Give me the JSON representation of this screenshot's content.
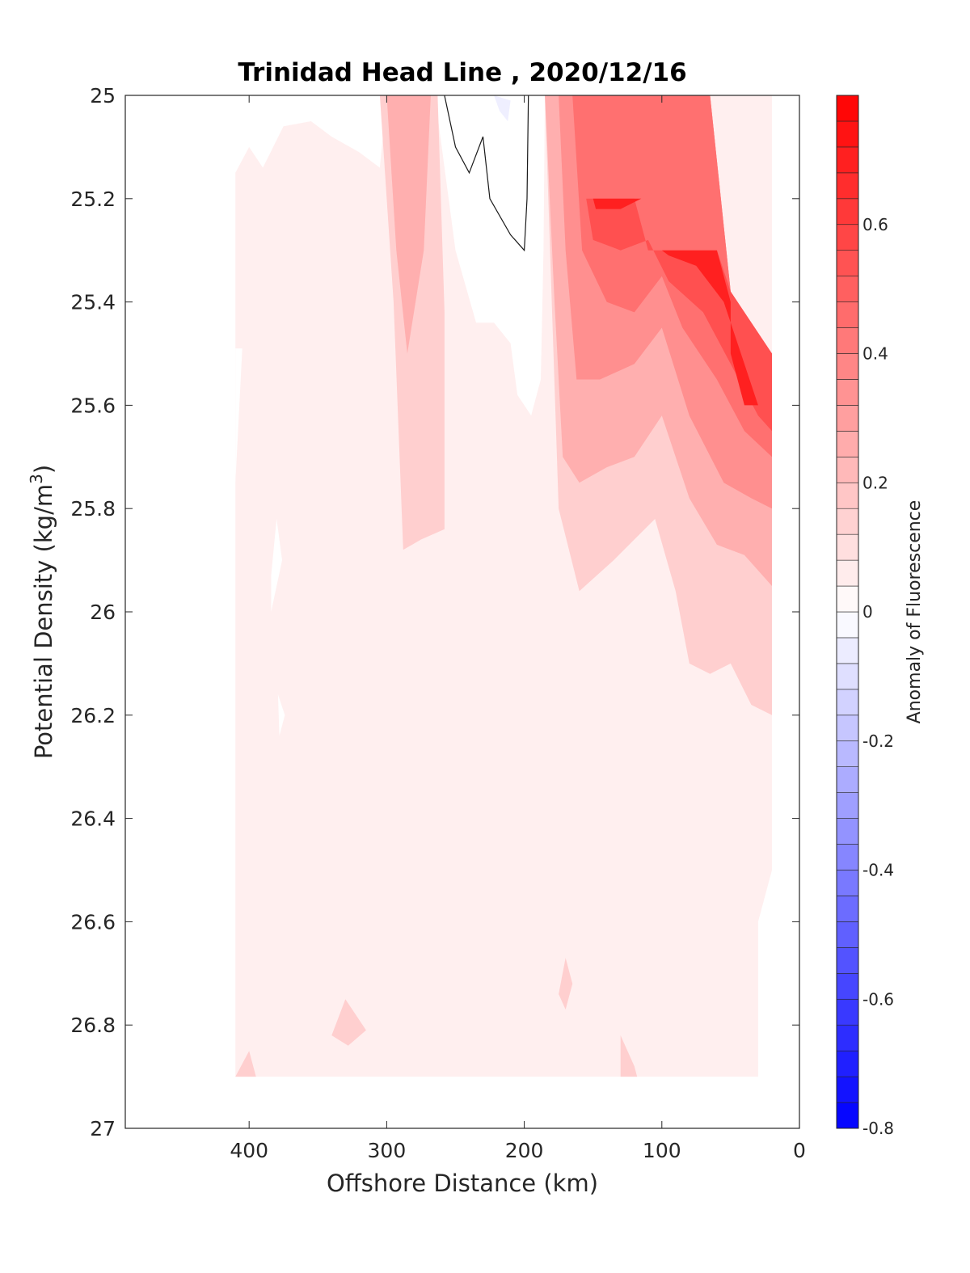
{
  "chart_data": {
    "type": "heatmap",
    "subtype": "filled-contour",
    "title": "Trinidad Head Line , 2020/12/16",
    "xlabel": "Offshore Distance (km)",
    "ylabel_main": "Potential Density (kg/m",
    "ylabel_sup": "3",
    "ylabel_end": ")",
    "xlim": [
      490,
      0
    ],
    "x_reversed": true,
    "ylim": [
      25,
      27
    ],
    "y_reversed": true,
    "x_ticks": [
      400,
      300,
      200,
      100,
      0
    ],
    "x_tick_labels": [
      "400",
      "300",
      "200",
      "100",
      "0"
    ],
    "y_ticks": [
      25,
      25.2,
      25.4,
      25.6,
      25.8,
      26,
      26.2,
      26.4,
      26.6,
      26.8,
      27
    ],
    "y_tick_labels": [
      "25",
      "25.2",
      "25.4",
      "25.6",
      "25.8",
      "26",
      "26.2",
      "26.4",
      "26.6",
      "26.8",
      "27"
    ],
    "colorbar": {
      "label": "Anomaly of Fluorescence",
      "range": [
        -0.8,
        0.8
      ],
      "levels": 40,
      "ticks": [
        0.6,
        0.4,
        0.2,
        0,
        -0.2,
        -0.4,
        -0.6,
        -0.8
      ],
      "tick_labels": [
        "0.6",
        "0.4",
        "0.2",
        "0",
        "-0.2",
        "-0.4",
        "-0.6",
        "-0.8"
      ],
      "colormap": "blue-white-red",
      "neg_color": "#0000ff",
      "zero_color": "#ffffff",
      "pos_color": "#ff0000"
    },
    "data_extent": {
      "x": [
        20,
        410
      ],
      "y": [
        25,
        26.9
      ]
    },
    "contour_regions": [
      {
        "value": 0.05,
        "points": [
          [
            410,
            25.15
          ],
          [
            400,
            25.1
          ],
          [
            390,
            25.14
          ],
          [
            375,
            25.06
          ],
          [
            355,
            25.05
          ],
          [
            340,
            25.08
          ],
          [
            320,
            25.11
          ],
          [
            305,
            25.14
          ],
          [
            300,
            25.0
          ],
          [
            265,
            25.0
          ],
          [
            250,
            25.3
          ],
          [
            235,
            25.44
          ],
          [
            222,
            25.44
          ],
          [
            210,
            25.48
          ],
          [
            205,
            25.58
          ],
          [
            200,
            25.6
          ],
          [
            195,
            25.62
          ],
          [
            188,
            25.55
          ],
          [
            186,
            25.3
          ],
          [
            185,
            25.0
          ],
          [
            20,
            25.0
          ],
          [
            20,
            26.5
          ],
          [
            30,
            26.6
          ],
          [
            30,
            26.9
          ],
          [
            410,
            26.9
          ]
        ]
      },
      {
        "value": 0.0,
        "points": [
          [
            410,
            25.75
          ],
          [
            405,
            25.49
          ],
          [
            410,
            25.49
          ]
        ]
      },
      {
        "value": 0.0,
        "points": [
          [
            384,
            25.93
          ],
          [
            380,
            25.82
          ],
          [
            376,
            25.9
          ],
          [
            384,
            26.0
          ]
        ]
      },
      {
        "value": 0.0,
        "points": [
          [
            379,
            26.16
          ],
          [
            374,
            26.2
          ],
          [
            378,
            26.24
          ]
        ]
      },
      {
        "value": 0.15,
        "points": [
          [
            305,
            25.0
          ],
          [
            295,
            25.4
          ],
          [
            288,
            25.88
          ],
          [
            275,
            25.86
          ],
          [
            258,
            25.84
          ],
          [
            258,
            25.42
          ],
          [
            263,
            25.0
          ]
        ]
      },
      {
        "value": 0.15,
        "points": [
          [
            185,
            25.0
          ],
          [
            180,
            25.4
          ],
          [
            175,
            25.8
          ],
          [
            160,
            25.96
          ],
          [
            135,
            25.9
          ],
          [
            105,
            25.82
          ],
          [
            90,
            25.96
          ],
          [
            80,
            26.1
          ],
          [
            65,
            26.12
          ],
          [
            50,
            26.1
          ],
          [
            35,
            26.18
          ],
          [
            20,
            26.2
          ],
          [
            20,
            25.5
          ],
          [
            50,
            25.38
          ],
          [
            65,
            25.0
          ]
        ]
      },
      {
        "value": 0.15,
        "points": [
          [
            340,
            26.82
          ],
          [
            330,
            26.75
          ],
          [
            315,
            26.81
          ],
          [
            328,
            26.84
          ]
        ]
      },
      {
        "value": 0.15,
        "points": [
          [
            410,
            26.9
          ],
          [
            400,
            26.85
          ],
          [
            395,
            26.9
          ]
        ]
      },
      {
        "value": 0.15,
        "points": [
          [
            175,
            26.74
          ],
          [
            170,
            26.67
          ],
          [
            165,
            26.72
          ],
          [
            170,
            26.77
          ]
        ]
      },
      {
        "value": 0.15,
        "points": [
          [
            130,
            26.9
          ],
          [
            130,
            26.82
          ],
          [
            120,
            26.88
          ],
          [
            118,
            26.9
          ]
        ]
      },
      {
        "value": 0.25,
        "points": [
          [
            300,
            25.0
          ],
          [
            293,
            25.3
          ],
          [
            285,
            25.5
          ],
          [
            273,
            25.3
          ],
          [
            268,
            25.0
          ]
        ]
      },
      {
        "value": 0.25,
        "points": [
          [
            185,
            25.0
          ],
          [
            178,
            25.4
          ],
          [
            172,
            25.7
          ],
          [
            160,
            25.75
          ],
          [
            140,
            25.72
          ],
          [
            120,
            25.7
          ],
          [
            100,
            25.62
          ],
          [
            80,
            25.78
          ],
          [
            60,
            25.87
          ],
          [
            40,
            25.89
          ],
          [
            20,
            25.95
          ],
          [
            20,
            25.5
          ],
          [
            50,
            25.38
          ],
          [
            65,
            25.0
          ]
        ]
      },
      {
        "value": 0.35,
        "points": [
          [
            175,
            25.0
          ],
          [
            170,
            25.3
          ],
          [
            162,
            25.55
          ],
          [
            145,
            25.55
          ],
          [
            120,
            25.52
          ],
          [
            100,
            25.45
          ],
          [
            80,
            25.62
          ],
          [
            55,
            25.75
          ],
          [
            35,
            25.78
          ],
          [
            20,
            25.8
          ],
          [
            20,
            25.5
          ],
          [
            50,
            25.38
          ],
          [
            65,
            25.0
          ]
        ]
      },
      {
        "value": 0.45,
        "points": [
          [
            165,
            25.0
          ],
          [
            158,
            25.3
          ],
          [
            140,
            25.4
          ],
          [
            120,
            25.42
          ],
          [
            100,
            25.35
          ],
          [
            85,
            25.45
          ],
          [
            60,
            25.55
          ],
          [
            40,
            25.65
          ],
          [
            20,
            25.7
          ],
          [
            20,
            25.5
          ],
          [
            50,
            25.38
          ],
          [
            65,
            25.0
          ]
        ]
      },
      {
        "value": 0.55,
        "points": [
          [
            155,
            25.2
          ],
          [
            150,
            25.28
          ],
          [
            130,
            25.3
          ],
          [
            110,
            25.28
          ],
          [
            95,
            25.36
          ],
          [
            70,
            25.42
          ],
          [
            50,
            25.52
          ],
          [
            30,
            25.62
          ],
          [
            20,
            25.65
          ],
          [
            20,
            25.5
          ],
          [
            50,
            25.38
          ],
          [
            60,
            25.3
          ],
          [
            110,
            25.3
          ],
          [
            120,
            25.2
          ]
        ]
      },
      {
        "value": 0.7,
        "points": [
          [
            150,
            25.2
          ],
          [
            148,
            25.22
          ],
          [
            130,
            25.22
          ],
          [
            115,
            25.2
          ]
        ]
      },
      {
        "value": 0.7,
        "points": [
          [
            100,
            25.3
          ],
          [
            95,
            25.31
          ],
          [
            75,
            25.33
          ],
          [
            55,
            25.4
          ],
          [
            40,
            25.52
          ],
          [
            30,
            25.6
          ],
          [
            40,
            25.6
          ],
          [
            50,
            25.5
          ],
          [
            50,
            25.4
          ],
          [
            60,
            25.3
          ]
        ]
      },
      {
        "value": -0.05,
        "points": [
          [
            222,
            25.0
          ],
          [
            218,
            25.03
          ],
          [
            212,
            25.05
          ],
          [
            210,
            25.01
          ]
        ]
      }
    ],
    "zero_contour_line": [
      [
        258,
        25.0
      ],
      [
        250,
        25.1
      ],
      [
        240,
        25.15
      ],
      [
        230,
        25.08
      ],
      [
        225,
        25.2
      ],
      [
        210,
        25.27
      ],
      [
        200,
        25.3
      ],
      [
        198,
        25.2
      ],
      [
        197,
        25.0
      ]
    ]
  }
}
